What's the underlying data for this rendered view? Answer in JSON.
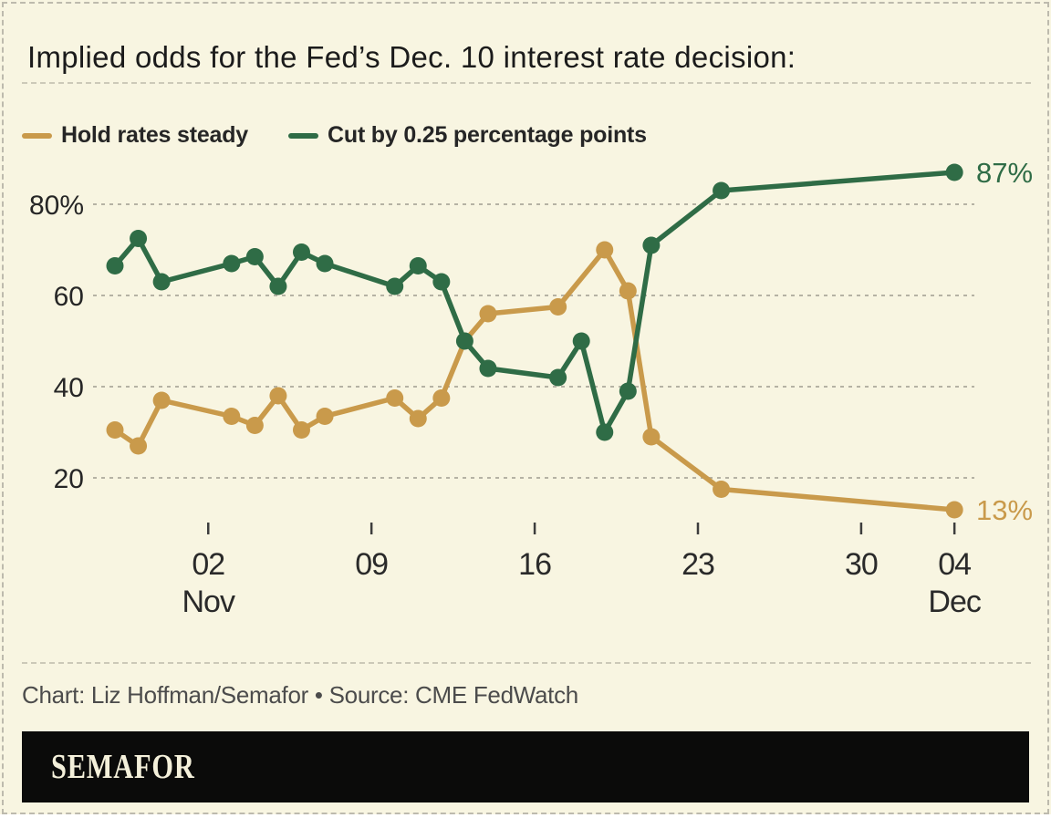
{
  "chart_data": {
    "type": "line",
    "title": "Implied odds for the Fed’s Dec. 10 interest rate decision:",
    "xlabel": "",
    "ylabel": "",
    "ylim": [
      10,
      92
    ],
    "yticks": [
      20,
      40,
      60,
      80
    ],
    "ytick_labels": [
      "20",
      "40",
      "60",
      "80%"
    ],
    "grid": "horizontal dashed",
    "legend_position": "top-left",
    "x_axis": {
      "unit": "date",
      "note": "day offsets from Oct 29; weekend gaps have no points",
      "ticks": [
        {
          "day": 4,
          "label": "02",
          "month": "Nov"
        },
        {
          "day": 11,
          "label": "09"
        },
        {
          "day": 18,
          "label": "16"
        },
        {
          "day": 25,
          "label": "23"
        },
        {
          "day": 32,
          "label": "30"
        },
        {
          "day": 36,
          "label": "04",
          "month": "Dec"
        }
      ]
    },
    "series": [
      {
        "id": "hold",
        "name": "Hold rates steady",
        "color": "#c99a4b",
        "end_label": "13%",
        "points": [
          {
            "date": "Oct 29",
            "day": 0,
            "value": 30.5
          },
          {
            "date": "Oct 30",
            "day": 1,
            "value": 27
          },
          {
            "date": "Oct 31",
            "day": 2,
            "value": 37
          },
          {
            "date": "Nov 3",
            "day": 5,
            "value": 33.5
          },
          {
            "date": "Nov 4",
            "day": 6,
            "value": 31.5
          },
          {
            "date": "Nov 5",
            "day": 7,
            "value": 38
          },
          {
            "date": "Nov 6",
            "day": 8,
            "value": 30.5
          },
          {
            "date": "Nov 7",
            "day": 9,
            "value": 33.5
          },
          {
            "date": "Nov 10",
            "day": 12,
            "value": 37.5
          },
          {
            "date": "Nov 11",
            "day": 13,
            "value": 33
          },
          {
            "date": "Nov 12",
            "day": 14,
            "value": 37.5
          },
          {
            "date": "Nov 13",
            "day": 15,
            "value": 50,
            "marker": false
          },
          {
            "date": "Nov 14",
            "day": 16,
            "value": 56
          },
          {
            "date": "Nov 17",
            "day": 19,
            "value": 57.5
          },
          {
            "date": "Nov 19",
            "day": 21,
            "value": 70
          },
          {
            "date": "Nov 20",
            "day": 22,
            "value": 61
          },
          {
            "date": "Nov 21",
            "day": 23,
            "value": 29
          },
          {
            "date": "Nov 24",
            "day": 26,
            "value": 17.5
          },
          {
            "date": "Dec 4",
            "day": 36,
            "value": 13
          }
        ]
      },
      {
        "id": "cut",
        "name": "Cut by 0.25 percentage points",
        "color": "#2f6c46",
        "end_label": "87%",
        "points": [
          {
            "date": "Oct 29",
            "day": 0,
            "value": 66.5
          },
          {
            "date": "Oct 30",
            "day": 1,
            "value": 72.5
          },
          {
            "date": "Oct 31",
            "day": 2,
            "value": 63
          },
          {
            "date": "Nov 3",
            "day": 5,
            "value": 67
          },
          {
            "date": "Nov 4",
            "day": 6,
            "value": 68.5
          },
          {
            "date": "Nov 5",
            "day": 7,
            "value": 62
          },
          {
            "date": "Nov 6",
            "day": 8,
            "value": 69.5
          },
          {
            "date": "Nov 7",
            "day": 9,
            "value": 67
          },
          {
            "date": "Nov 10",
            "day": 12,
            "value": 62
          },
          {
            "date": "Nov 11",
            "day": 13,
            "value": 66.5
          },
          {
            "date": "Nov 12",
            "day": 14,
            "value": 63
          },
          {
            "date": "Nov 13",
            "day": 15,
            "value": 50
          },
          {
            "date": "Nov 14",
            "day": 16,
            "value": 44
          },
          {
            "date": "Nov 17",
            "day": 19,
            "value": 42
          },
          {
            "date": "Nov 18",
            "day": 20,
            "value": 50
          },
          {
            "date": "Nov 19",
            "day": 21,
            "value": 30
          },
          {
            "date": "Nov 20",
            "day": 22,
            "value": 39
          },
          {
            "date": "Nov 21",
            "day": 23,
            "value": 71
          },
          {
            "date": "Nov 24",
            "day": 26,
            "value": 83
          },
          {
            "date": "Dec 4",
            "day": 36,
            "value": 87
          }
        ]
      }
    ],
    "grid_color": "#b5b2a4",
    "tick_color": "#3d3d3d"
  },
  "footer": {
    "credit": "Chart: Liz Hoffman/Semafor • Source: CME FedWatch"
  },
  "logo": {
    "text": "SEMAFOR"
  }
}
